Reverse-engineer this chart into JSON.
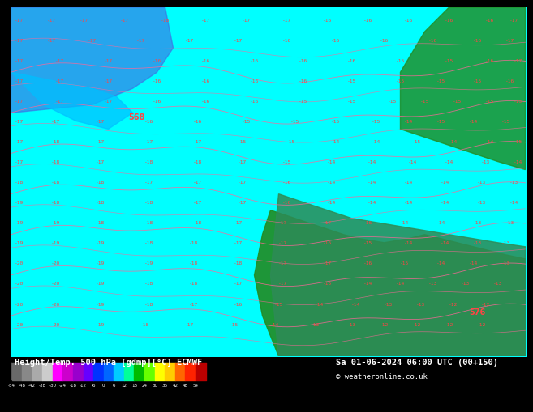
{
  "title_left": "Height/Temp. 500 hPa [gdmp][°C] ECMWF",
  "title_right": "Sa 01-06-2024 06:00 UTC (00+150)",
  "copyright": "© weatheronline.co.uk",
  "bg_color": "#00FFFF",
  "map_bg_color": "#00FFFF",
  "colorbar_values": [
    -54,
    -48,
    -42,
    -38,
    -30,
    -24,
    -18,
    -12,
    -6,
    0,
    6,
    12,
    18,
    24,
    30,
    36,
    42,
    48,
    54
  ],
  "colorbar_colors": [
    "#808080",
    "#a0a0a0",
    "#c0c0c0",
    "#e0e0e0",
    "#ff00ff",
    "#cc00cc",
    "#9900cc",
    "#6600ff",
    "#0000ff",
    "#0066ff",
    "#00ccff",
    "#00ff99",
    "#00cc00",
    "#66ff00",
    "#ffff00",
    "#ffcc00",
    "#ff6600",
    "#ff0000",
    "#cc0000"
  ],
  "contour_color": "#FF6666",
  "label_color": "#FF4444",
  "land_color_right": "#228B22",
  "land_color_left": "#1E90FF",
  "numbers_color": "#FF5555",
  "height_labels": [
    "-17",
    "-17",
    "-17",
    "-17",
    "-17",
    "-17",
    "-18",
    "-17",
    "-17",
    "-17",
    "-16",
    "-16",
    "-16",
    "-16",
    "-16",
    "-16",
    "-16",
    "-16",
    "-16",
    "-17"
  ],
  "contour_value_1": "568",
  "contour_value_2": "576",
  "bottom_label_values": "-54-48-42-38-30-24-18-12-6 0 6 12 18 24 30 36 42 48 54"
}
